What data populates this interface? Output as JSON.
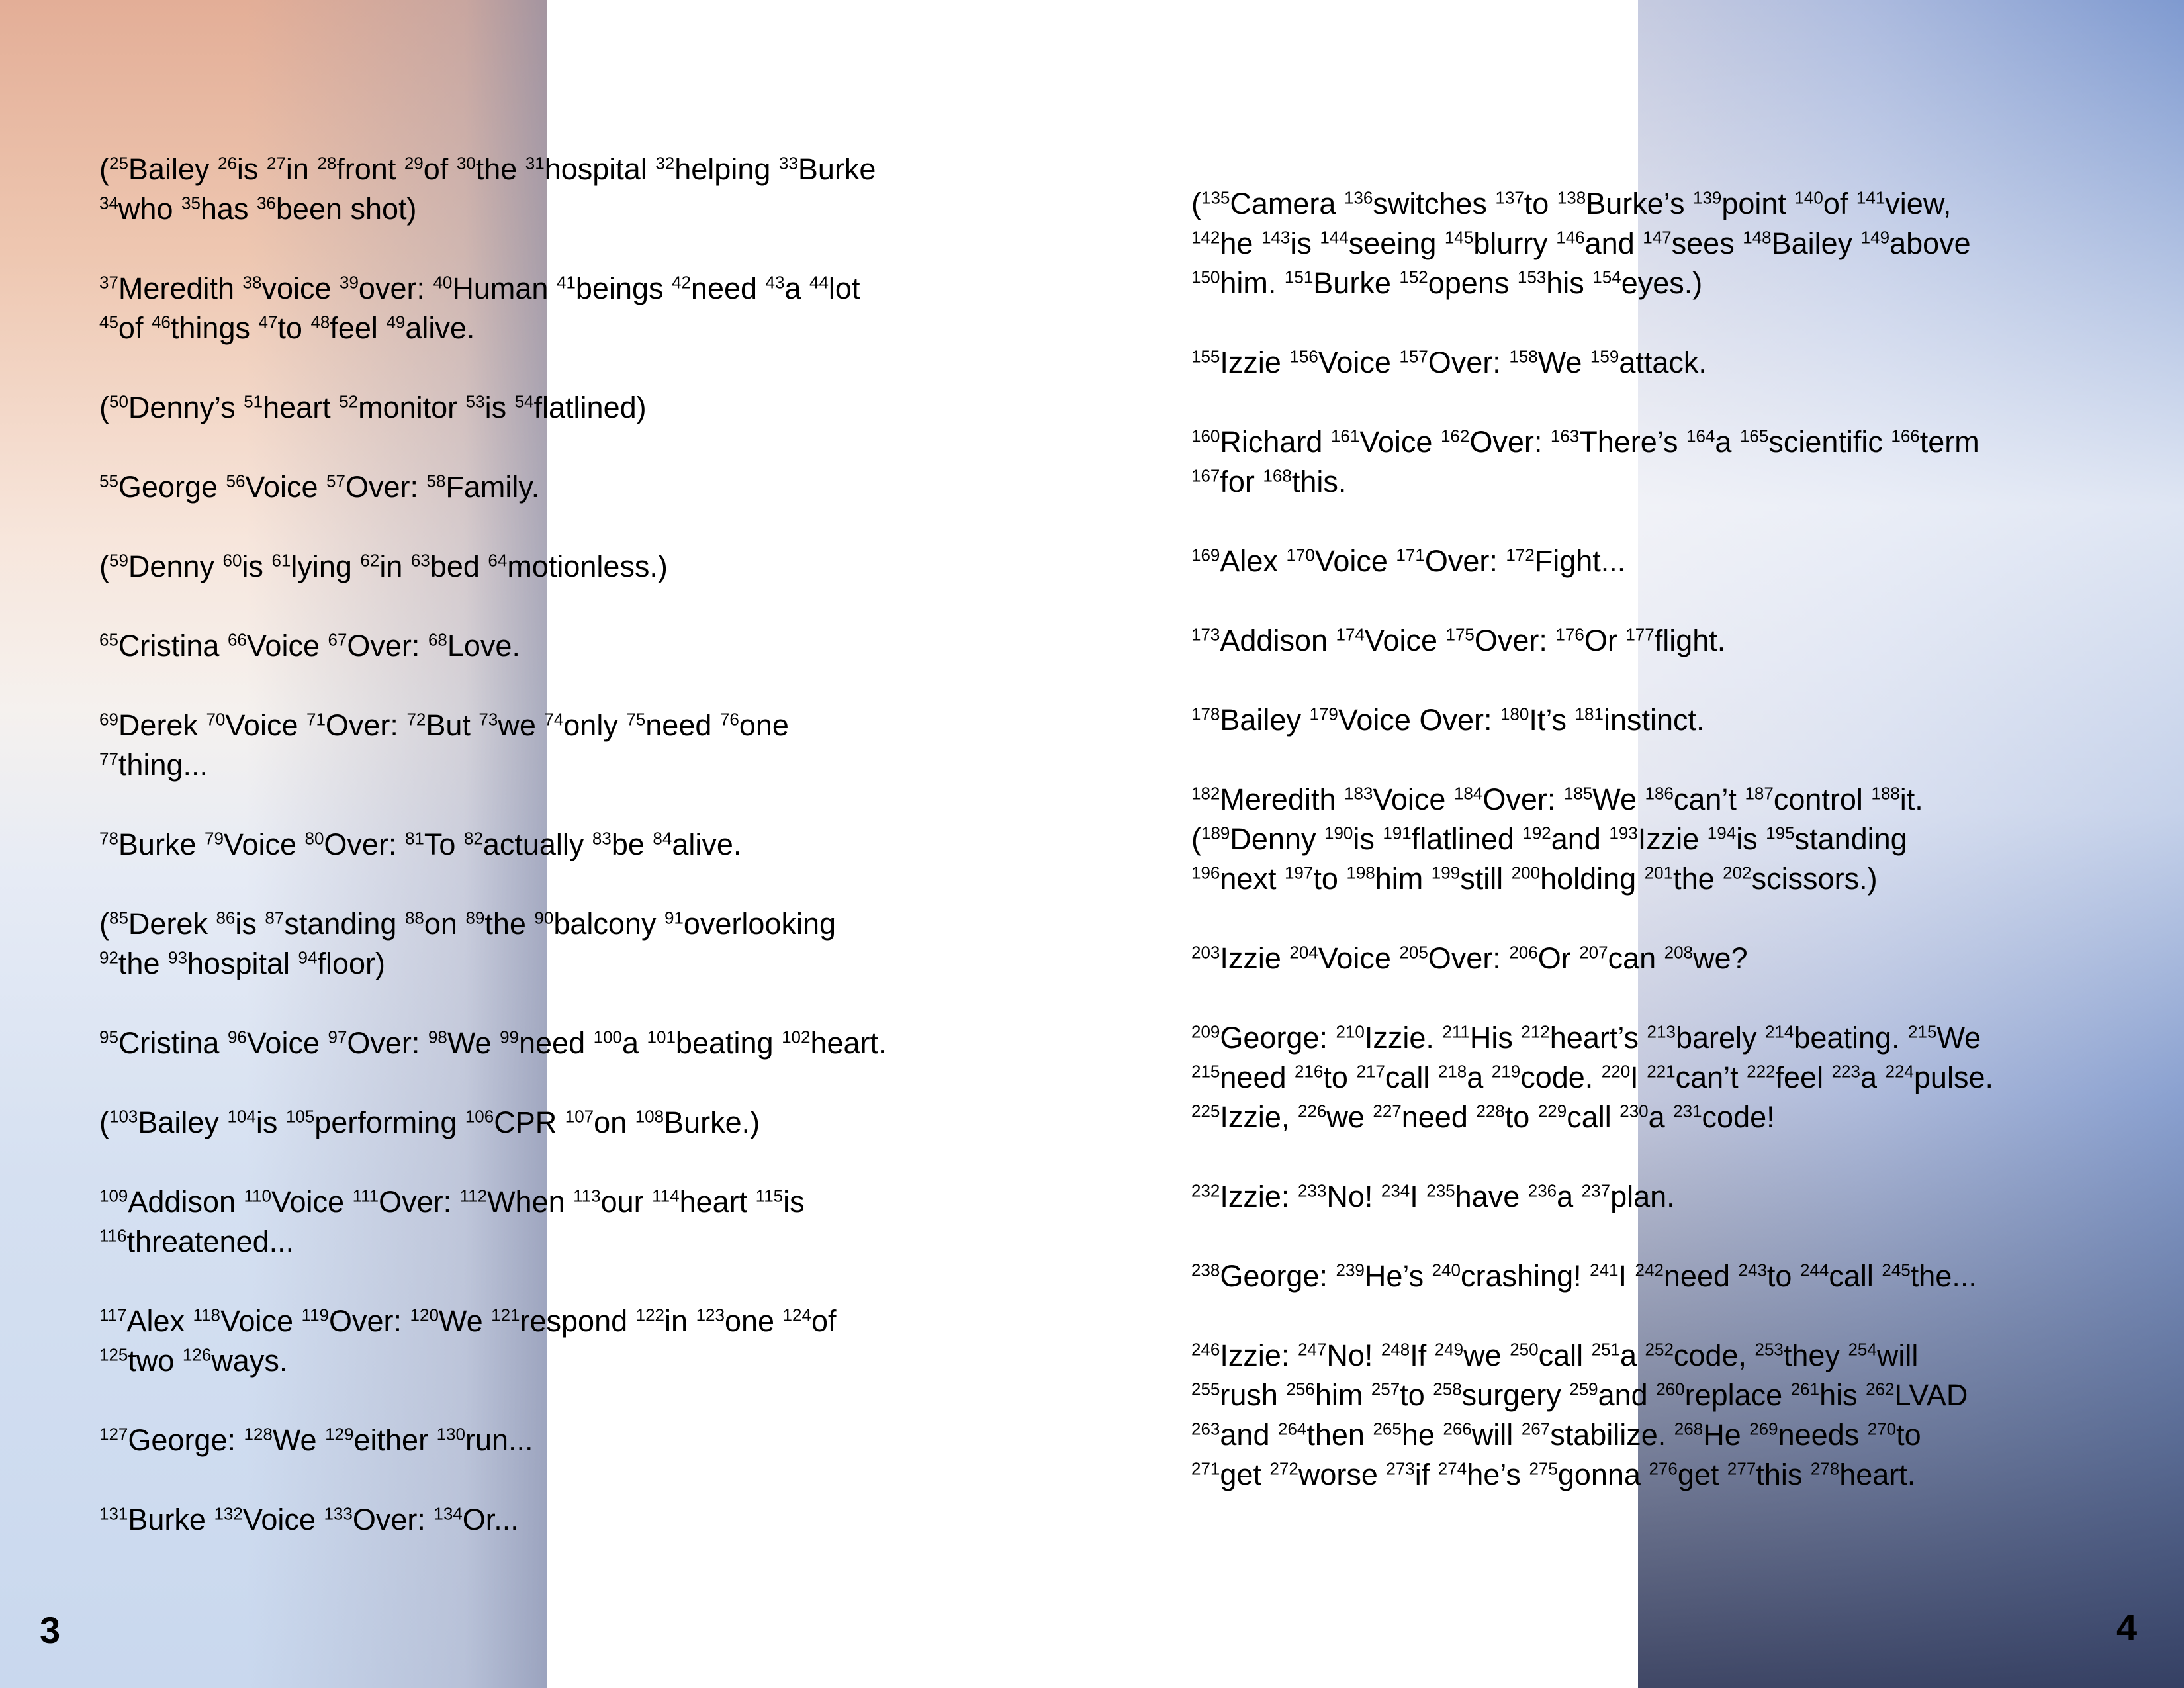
{
  "left_page": {
    "number": "3",
    "paragraphs": [
      [
        [
          "(",
          "25",
          "Bailey "
        ],
        [
          "",
          "26",
          "is "
        ],
        [
          "",
          "27",
          "in "
        ],
        [
          "",
          "28",
          "front "
        ],
        [
          "",
          "29",
          "of "
        ],
        [
          "",
          "30",
          "the "
        ],
        [
          "",
          "31",
          "hospital "
        ],
        [
          "",
          "32",
          "helping "
        ],
        [
          "",
          "33",
          "Burke\n"
        ],
        [
          "",
          "34",
          "who "
        ],
        [
          "",
          "35",
          "has "
        ],
        [
          "",
          "36",
          "been shot)"
        ]
      ],
      [
        [
          "",
          "37",
          "Meredith "
        ],
        [
          "",
          "38",
          "voice "
        ],
        [
          "",
          "39",
          "over: "
        ],
        [
          "",
          "40",
          "Human "
        ],
        [
          "",
          "41",
          "beings "
        ],
        [
          "",
          "42",
          "need "
        ],
        [
          "",
          "43",
          "a "
        ],
        [
          "",
          "44",
          "lot\n"
        ],
        [
          "",
          "45",
          "of "
        ],
        [
          "",
          "46",
          "things "
        ],
        [
          "",
          "47",
          "to "
        ],
        [
          "",
          "48",
          "feel "
        ],
        [
          "",
          "49",
          "alive."
        ]
      ],
      [
        [
          "(",
          "50",
          "Denny’s "
        ],
        [
          "",
          "51",
          "heart "
        ],
        [
          "",
          "52",
          "monitor "
        ],
        [
          "",
          "53",
          "is "
        ],
        [
          "",
          "54",
          "flatlined)"
        ]
      ],
      [
        [
          "",
          "55",
          "George "
        ],
        [
          "",
          "56",
          "Voice "
        ],
        [
          "",
          "57",
          "Over: "
        ],
        [
          "",
          "58",
          "Family."
        ]
      ],
      [
        [
          "(",
          "59",
          "Denny "
        ],
        [
          "",
          "60",
          "is "
        ],
        [
          "",
          "61",
          "lying "
        ],
        [
          "",
          "62",
          "in "
        ],
        [
          "",
          "63",
          "bed "
        ],
        [
          "",
          "64",
          "motionless.)"
        ]
      ],
      [
        [
          "",
          "65",
          "Cristina "
        ],
        [
          "",
          "66",
          "Voice "
        ],
        [
          "",
          "67",
          "Over: "
        ],
        [
          "",
          "68",
          "Love."
        ]
      ],
      [
        [
          "",
          "69",
          "Derek "
        ],
        [
          "",
          "70",
          "Voice "
        ],
        [
          "",
          "71",
          "Over: "
        ],
        [
          "",
          "72",
          "But "
        ],
        [
          "",
          "73",
          "we "
        ],
        [
          "",
          "74",
          "only "
        ],
        [
          "",
          "75",
          "need "
        ],
        [
          "",
          "76",
          "one\n"
        ],
        [
          "",
          "77",
          "thing..."
        ]
      ],
      [
        [
          "",
          "78",
          "Burke "
        ],
        [
          "",
          "79",
          "Voice "
        ],
        [
          "",
          "80",
          "Over: "
        ],
        [
          "",
          "81",
          "To "
        ],
        [
          "",
          "82",
          "actually "
        ],
        [
          "",
          "83",
          "be "
        ],
        [
          "",
          "84",
          "alive."
        ]
      ],
      [
        [
          "(",
          "85",
          "Derek "
        ],
        [
          "",
          "86",
          "is "
        ],
        [
          "",
          "87",
          "standing "
        ],
        [
          "",
          "88",
          "on "
        ],
        [
          "",
          "89",
          "the "
        ],
        [
          "",
          "90",
          "balcony "
        ],
        [
          "",
          "91",
          "overlooking\n"
        ],
        [
          "",
          "92",
          "the "
        ],
        [
          "",
          "93",
          "hospital "
        ],
        [
          "",
          "94",
          "floor)"
        ]
      ],
      [
        [
          "",
          "95",
          "Cristina "
        ],
        [
          "",
          "96",
          "Voice "
        ],
        [
          "",
          "97",
          "Over: "
        ],
        [
          "",
          "98",
          "We "
        ],
        [
          "",
          "99",
          "need "
        ],
        [
          "",
          "100",
          "a "
        ],
        [
          "",
          "101",
          "beating "
        ],
        [
          "",
          "102",
          "heart."
        ]
      ],
      [
        [
          "(",
          "103",
          "Bailey "
        ],
        [
          "",
          "104",
          "is "
        ],
        [
          "",
          "105",
          "performing "
        ],
        [
          "",
          "106",
          "CPR "
        ],
        [
          "",
          "107",
          "on "
        ],
        [
          "",
          "108",
          "Burke.)"
        ]
      ],
      [
        [
          "",
          "109",
          "Addison "
        ],
        [
          "",
          "110",
          "Voice "
        ],
        [
          "",
          "111",
          "Over: "
        ],
        [
          "",
          "112",
          "When "
        ],
        [
          "",
          "113",
          "our "
        ],
        [
          "",
          "114",
          "heart "
        ],
        [
          "",
          "115",
          "is\n"
        ],
        [
          "",
          "116",
          "threatened..."
        ]
      ],
      [
        [
          "",
          "117",
          "Alex "
        ],
        [
          "",
          "118",
          "Voice "
        ],
        [
          "",
          "119",
          "Over: "
        ],
        [
          "",
          "120",
          "We "
        ],
        [
          "",
          "121",
          "respond "
        ],
        [
          "",
          "122",
          "in "
        ],
        [
          "",
          "123",
          "one "
        ],
        [
          "",
          "124",
          "of\n"
        ],
        [
          "",
          "125",
          "two "
        ],
        [
          "",
          "126",
          "ways."
        ]
      ],
      [
        [
          "",
          "127",
          "George: "
        ],
        [
          "",
          "128",
          "We "
        ],
        [
          "",
          "129",
          "either "
        ],
        [
          "",
          "130",
          "run..."
        ]
      ],
      [
        [
          "",
          "131",
          "Burke "
        ],
        [
          "",
          "132",
          "Voice "
        ],
        [
          "",
          "133",
          "Over: "
        ],
        [
          "",
          "134",
          "Or..."
        ]
      ]
    ]
  },
  "right_page": {
    "number": "4",
    "paragraphs": [
      [
        [
          "(",
          "135",
          "Camera "
        ],
        [
          "",
          "136",
          "switches "
        ],
        [
          "",
          "137",
          "to "
        ],
        [
          "",
          "138",
          "Burke’s "
        ],
        [
          "",
          "139",
          "point "
        ],
        [
          "",
          "140",
          "of "
        ],
        [
          "",
          "141",
          "view,\n"
        ],
        [
          "",
          "142",
          "he "
        ],
        [
          "",
          "143",
          "is "
        ],
        [
          "",
          "144",
          "seeing "
        ],
        [
          "",
          "145",
          "blurry "
        ],
        [
          "",
          "146",
          "and "
        ],
        [
          "",
          "147",
          "sees "
        ],
        [
          "",
          "148",
          "Bailey "
        ],
        [
          "",
          "149",
          "above\n"
        ],
        [
          "",
          "150",
          "him. "
        ],
        [
          "",
          "151",
          "Burke "
        ],
        [
          "",
          "152",
          "opens "
        ],
        [
          "",
          "153",
          "his "
        ],
        [
          "",
          "154",
          "eyes.)"
        ]
      ],
      [
        [
          "",
          "155",
          "Izzie "
        ],
        [
          "",
          "156",
          "Voice "
        ],
        [
          "",
          "157",
          "Over: "
        ],
        [
          "",
          "158",
          "We "
        ],
        [
          "",
          "159",
          "attack."
        ]
      ],
      [
        [
          "",
          "160",
          "Richard "
        ],
        [
          "",
          "161",
          "Voice "
        ],
        [
          "",
          "162",
          "Over: "
        ],
        [
          "",
          "163",
          "There’s "
        ],
        [
          "",
          "164",
          "a "
        ],
        [
          "",
          "165",
          "scientific "
        ],
        [
          "",
          "166",
          "term\n"
        ],
        [
          "",
          "167",
          "for "
        ],
        [
          "",
          "168",
          "this."
        ]
      ],
      [
        [
          "",
          "169",
          "Alex "
        ],
        [
          "",
          "170",
          "Voice "
        ],
        [
          "",
          "171",
          "Over: "
        ],
        [
          "",
          "172",
          "Fight..."
        ]
      ],
      [
        [
          "",
          "173",
          "Addison "
        ],
        [
          "",
          "174",
          "Voice "
        ],
        [
          "",
          "175",
          "Over: "
        ],
        [
          "",
          "176",
          "Or "
        ],
        [
          "",
          "177",
          "flight."
        ]
      ],
      [
        [
          "",
          "178",
          "Bailey "
        ],
        [
          "",
          "179",
          "Voice Over: "
        ],
        [
          "",
          "180",
          "It’s "
        ],
        [
          "",
          "181",
          "instinct."
        ]
      ],
      [
        [
          "",
          "182",
          "Meredith "
        ],
        [
          "",
          "183",
          "Voice "
        ],
        [
          "",
          "184",
          "Over: "
        ],
        [
          "",
          "185",
          "We "
        ],
        [
          "",
          "186",
          "can’t "
        ],
        [
          "",
          "187",
          "control "
        ],
        [
          "",
          "188",
          "it.\n("
        ],
        [
          "",
          "189",
          "Denny "
        ],
        [
          "",
          "190",
          "is "
        ],
        [
          "",
          "191",
          "flatlined "
        ],
        [
          "",
          "192",
          "and "
        ],
        [
          "",
          "193",
          "Izzie "
        ],
        [
          "",
          "194",
          "is "
        ],
        [
          "",
          "195",
          "standing\n"
        ],
        [
          "",
          "196",
          "next "
        ],
        [
          "",
          "197",
          "to "
        ],
        [
          "",
          "198",
          "him "
        ],
        [
          "",
          "199",
          "still "
        ],
        [
          "",
          "200",
          "holding "
        ],
        [
          "",
          "201",
          "the "
        ],
        [
          "",
          "202",
          "scissors.)"
        ]
      ],
      [
        [
          "",
          "203",
          "Izzie "
        ],
        [
          "",
          "204",
          "Voice "
        ],
        [
          "",
          "205",
          "Over: "
        ],
        [
          "",
          "206",
          "Or "
        ],
        [
          "",
          "207",
          "can "
        ],
        [
          "",
          "208",
          "we?"
        ]
      ],
      [
        [
          "",
          "209",
          "George: "
        ],
        [
          "",
          "210",
          "Izzie. "
        ],
        [
          "",
          "211",
          "His "
        ],
        [
          "",
          "212",
          "heart’s "
        ],
        [
          "",
          "213",
          "barely "
        ],
        [
          "",
          "214",
          "beating. "
        ],
        [
          "",
          "215",
          "We\n"
        ],
        [
          "",
          "215",
          "need "
        ],
        [
          "",
          "216",
          "to "
        ],
        [
          "",
          "217",
          "call "
        ],
        [
          "",
          "218",
          "a "
        ],
        [
          "",
          "219",
          "code. "
        ],
        [
          "",
          "220",
          "I "
        ],
        [
          "",
          "221",
          "can’t "
        ],
        [
          "",
          "222",
          "feel "
        ],
        [
          "",
          "223",
          "a "
        ],
        [
          "",
          "224",
          "pulse.\n"
        ],
        [
          "",
          "225",
          "Izzie, "
        ],
        [
          "",
          "226",
          "we "
        ],
        [
          "",
          "227",
          "need "
        ],
        [
          "",
          "228",
          "to "
        ],
        [
          "",
          "229",
          "call "
        ],
        [
          "",
          "230",
          "a "
        ],
        [
          "",
          "231",
          "code!"
        ]
      ],
      [
        [
          "",
          "232",
          "Izzie: "
        ],
        [
          "",
          "233",
          "No! "
        ],
        [
          "",
          "234",
          "I "
        ],
        [
          "",
          "235",
          "have "
        ],
        [
          "",
          "236",
          "a "
        ],
        [
          "",
          "237",
          "plan."
        ]
      ],
      [
        [
          "",
          "238",
          "George: "
        ],
        [
          "",
          "239",
          "He’s "
        ],
        [
          "",
          "240",
          "crashing! "
        ],
        [
          "",
          "241",
          "I "
        ],
        [
          "",
          "242",
          "need "
        ],
        [
          "",
          "243",
          "to "
        ],
        [
          "",
          "244",
          "call "
        ],
        [
          "",
          "245",
          "the..."
        ]
      ],
      [
        [
          "",
          "246",
          "Izzie: "
        ],
        [
          "",
          "247",
          "No! "
        ],
        [
          "",
          "248",
          "If "
        ],
        [
          "",
          "249",
          "we "
        ],
        [
          "",
          "250",
          "call "
        ],
        [
          "",
          "251",
          "a "
        ],
        [
          "",
          "252",
          "code, "
        ],
        [
          "",
          "253",
          "they "
        ],
        [
          "",
          "254",
          "will\n"
        ],
        [
          "",
          "255",
          "rush "
        ],
        [
          "",
          "256",
          "him "
        ],
        [
          "",
          "257",
          "to "
        ],
        [
          "",
          "258",
          "surgery "
        ],
        [
          "",
          "259",
          "and "
        ],
        [
          "",
          "260",
          "replace "
        ],
        [
          "",
          "261",
          "his "
        ],
        [
          "",
          "262",
          "LVAD\n"
        ],
        [
          "",
          "263",
          "and "
        ],
        [
          "",
          "264",
          "then "
        ],
        [
          "",
          "265",
          "he "
        ],
        [
          "",
          "266",
          "will "
        ],
        [
          "",
          "267",
          "stabilize. "
        ],
        [
          "",
          "268",
          "He "
        ],
        [
          "",
          "269",
          "needs "
        ],
        [
          "",
          "270",
          "to\n"
        ],
        [
          "",
          "271",
          "get "
        ],
        [
          "",
          "272",
          "worse "
        ],
        [
          "",
          "273",
          "if "
        ],
        [
          "",
          "274",
          "he’s "
        ],
        [
          "",
          "275",
          "gonna "
        ],
        [
          "",
          "276",
          "get "
        ],
        [
          "",
          "277",
          "this "
        ],
        [
          "",
          "278",
          "heart."
        ]
      ]
    ]
  }
}
